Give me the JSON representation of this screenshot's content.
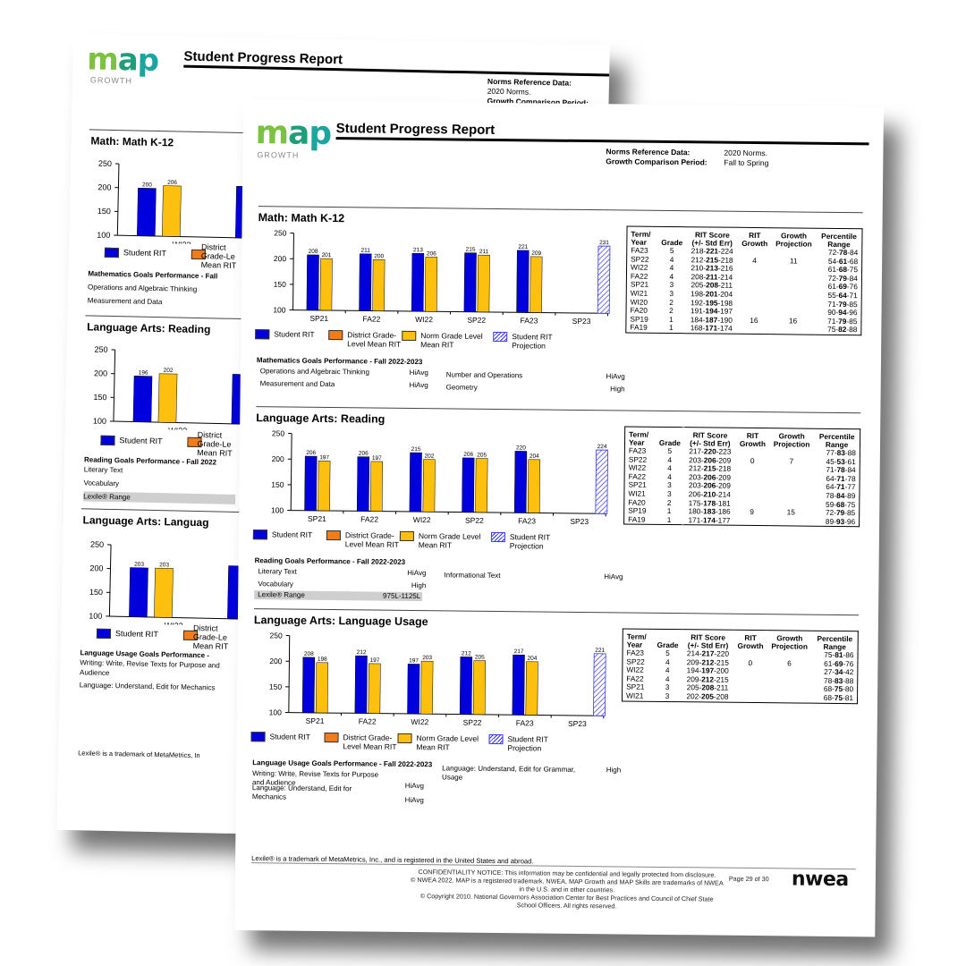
{
  "brand": {
    "logo": "map",
    "logo_sub": "GROWTH",
    "nwea": "nwea"
  },
  "report_title": "Student Progress Report",
  "norms": {
    "ref_label": "Norms Reference Data:",
    "ref_value": "2020 Norms.",
    "period_label": "Growth Comparison Period:",
    "period_value": "Fall to Spring"
  },
  "legend": {
    "student": "Student RIT",
    "district": "District Grade-Level Mean RIT",
    "norm": "Norm Grade Level Mean RIT",
    "projection": "Student RIT Projection"
  },
  "table_headers": [
    "Term/ Year",
    "Grade",
    "RIT Score (+/- Std Err)",
    "RIT Growth",
    "Growth Projection",
    "Percentile Range"
  ],
  "colors": {
    "student": "#0000dd",
    "district": "#f07d1a",
    "norm": "#fdc00f",
    "projection": "#3333ff"
  },
  "sections": [
    {
      "title": "Math: Math K-12",
      "chart_data": {
        "type": "bar",
        "categories": [
          "SP21",
          "FA22",
          "WI22",
          "SP22",
          "FA23",
          "SP23"
        ],
        "ylim": [
          100,
          250
        ],
        "yticks": [
          100,
          150,
          200,
          250
        ],
        "series": [
          {
            "name": "Student RIT",
            "values": [
              208,
              211,
              213,
              215,
              221,
              null
            ]
          },
          {
            "name": "Norm Grade Level Mean RIT",
            "values": [
              201,
              200,
              206,
              211,
              209,
              null
            ]
          },
          {
            "name": "Student RIT Projection",
            "values": [
              null,
              null,
              null,
              null,
              null,
              231
            ]
          }
        ]
      },
      "goals_head": "Mathematics Goals Performance - Fall 2022-2023",
      "goals": [
        {
          "name": "Operations and Algebraic Thinking",
          "value": "HiAvg"
        },
        {
          "name": "Number and Operations",
          "value": "HiAvg"
        },
        {
          "name": "Measurement and Data",
          "value": "HiAvg"
        },
        {
          "name": "Geometry",
          "value": "High"
        }
      ],
      "rows": [
        [
          "FA23",
          "5",
          "218-",
          "221",
          "-224",
          "",
          "",
          "72-",
          "78",
          "-84"
        ],
        [
          "SP22",
          "4",
          "212-",
          "215",
          "-218",
          "4",
          "11",
          "54-",
          "61",
          "-68"
        ],
        [
          "WI22",
          "4",
          "210-",
          "213",
          "-216",
          "",
          "",
          "61-",
          "68",
          "-75"
        ],
        [
          "FA22",
          "4",
          "208-",
          "211",
          "-214",
          "",
          "",
          "72-",
          "79",
          "-84"
        ],
        [
          "SP21",
          "3",
          "205-",
          "208",
          "-211",
          "",
          "",
          "61-",
          "69",
          "-76"
        ],
        [
          "WI21",
          "3",
          "198-",
          "201",
          "-204",
          "",
          "",
          "55-",
          "64",
          "-71"
        ],
        [
          "WI20",
          "2",
          "192-",
          "195",
          "-198",
          "",
          "",
          "71-",
          "79",
          "-85"
        ],
        [
          "FA20",
          "2",
          "191-",
          "194",
          "-197",
          "",
          "",
          "90-",
          "94",
          "-96"
        ],
        [
          "SP19",
          "1",
          "184-",
          "187",
          "-190",
          "16",
          "16",
          "71-",
          "79",
          "-85"
        ],
        [
          "FA19",
          "1",
          "168-",
          "171",
          "-174",
          "",
          "",
          "75-",
          "82",
          "-88"
        ]
      ]
    },
    {
      "title": "Language Arts: Reading",
      "chart_data": {
        "type": "bar",
        "categories": [
          "SP21",
          "FA22",
          "WI22",
          "SP22",
          "FA23",
          "SP23"
        ],
        "ylim": [
          100,
          250
        ],
        "yticks": [
          100,
          150,
          200,
          250
        ],
        "series": [
          {
            "name": "Student RIT",
            "values": [
              206,
              206,
              215,
              206,
              220,
              null
            ]
          },
          {
            "name": "Norm Grade Level Mean RIT",
            "values": [
              197,
              197,
              202,
              205,
              204,
              null
            ]
          },
          {
            "name": "Student RIT Projection",
            "values": [
              null,
              null,
              null,
              null,
              null,
              224
            ]
          }
        ]
      },
      "goals_head": "Reading Goals Performance - Fall 2022-2023",
      "goals": [
        {
          "name": "Literary Text",
          "value": "HiAvg"
        },
        {
          "name": "Informational Text",
          "value": "HiAvg"
        },
        {
          "name": "Vocabulary",
          "value": "High"
        }
      ],
      "lexile": {
        "name": "Lexile® Range",
        "value": "975L-1125L"
      },
      "rows": [
        [
          "FA23",
          "5",
          "217-",
          "220",
          "-223",
          "",
          "",
          "77-",
          "83",
          "-88"
        ],
        [
          "SP22",
          "4",
          "203-",
          "206",
          "-209",
          "0",
          "7",
          "45-",
          "53",
          "-61"
        ],
        [
          "WI22",
          "4",
          "212-",
          "215",
          "-218",
          "",
          "",
          "71-",
          "78",
          "-84"
        ],
        [
          "FA22",
          "4",
          "203-",
          "206",
          "-209",
          "",
          "",
          "64-",
          "71",
          "-78"
        ],
        [
          "SP21",
          "3",
          "203-",
          "206",
          "-209",
          "",
          "",
          "64-",
          "71",
          "-77"
        ],
        [
          "WI21",
          "3",
          "206-",
          "210",
          "-214",
          "",
          "",
          "78-",
          "84",
          "-89"
        ],
        [
          "FA20",
          "2",
          "175-",
          "178",
          "-181",
          "",
          "",
          "59-",
          "68",
          "-75"
        ],
        [
          "SP19",
          "1",
          "180-",
          "183",
          "-186",
          "9",
          "15",
          "72-",
          "79",
          "-85"
        ],
        [
          "FA19",
          "1",
          "171-",
          "174",
          "-177",
          "",
          "",
          "89-",
          "93",
          "-96"
        ]
      ]
    },
    {
      "title": "Language Arts: Language Usage",
      "chart_data": {
        "type": "bar",
        "categories": [
          "SP21",
          "FA22",
          "WI22",
          "SP22",
          "FA23",
          "SP23"
        ],
        "ylim": [
          100,
          250
        ],
        "yticks": [
          100,
          150,
          200,
          250
        ],
        "series": [
          {
            "name": "Student RIT",
            "values": [
              208,
              212,
              197,
              212,
              217,
              null
            ]
          },
          {
            "name": "Norm Grade Level Mean RIT",
            "values": [
              198,
              197,
              203,
              205,
              204,
              null
            ]
          },
          {
            "name": "Student RIT Projection",
            "values": [
              null,
              null,
              null,
              null,
              null,
              221
            ]
          }
        ]
      },
      "goals_head": "Language Usage Goals Performance - Fall 2022-2023",
      "goals": [
        {
          "name": "Writing: Write, Revise Texts for Purpose and Audience",
          "value": "HiAvg"
        },
        {
          "name": "Language: Understand, Edit for Grammar, Usage",
          "value": "High"
        },
        {
          "name": "Language: Understand, Edit for Mechanics",
          "value": "HiAvg"
        }
      ],
      "rows": [
        [
          "FA23",
          "5",
          "214-",
          "217",
          "-220",
          "",
          "",
          "75-",
          "81",
          "-86"
        ],
        [
          "SP22",
          "4",
          "209-",
          "212",
          "-215",
          "0",
          "6",
          "61-",
          "69",
          "-76"
        ],
        [
          "WI22",
          "4",
          "194-",
          "197",
          "-200",
          "",
          "",
          "27-",
          "34",
          "-42"
        ],
        [
          "FA22",
          "4",
          "209-",
          "212",
          "-215",
          "",
          "",
          "78-",
          "83",
          "-88"
        ],
        [
          "SP21",
          "3",
          "205-",
          "208",
          "-211",
          "",
          "",
          "68-",
          "75",
          "-80"
        ],
        [
          "WI21",
          "3",
          "202-",
          "205",
          "-208",
          "",
          "",
          "68-",
          "75",
          "-81"
        ]
      ]
    }
  ],
  "back_page": {
    "math_title": "Math: Math K-12",
    "math_cat": "WI22",
    "math_values": [
      200,
      206
    ],
    "math_goals_head": "Mathematics Goals Performance - Fall",
    "math_goals": [
      "Operations and Algebraic Thinking",
      "Measurement and Data"
    ],
    "read_title": "Language Arts: Reading",
    "read_cat": "WI22",
    "read_values": [
      196,
      202
    ],
    "read_goals_head": "Reading Goals Performance - Fall 2022",
    "read_goals": [
      "Literary Text",
      "Vocabulary",
      "Lexile® Range"
    ],
    "lang_title": "Language Arts: Languag",
    "lang_cat": "WI22",
    "lang_values": [
      203,
      203
    ],
    "lang_goals_head": "Language Usage Goals Performance -",
    "lang_goals": [
      "Writing: Write, Revise Texts for Purpose and Audience",
      "Language: Understand, Edit for Mechanics"
    ],
    "district_short": "District Grade-Le Mean RIT",
    "lexile_note": "Lexile® is a trademark of MetaMetrics, In"
  },
  "footer": {
    "lexile_note": "Lexile® is a trademark of MetaMetrics, Inc., and is registered in the United States and abroad.",
    "confidentiality": "CONFIDENTIALITY NOTICE: This information may be confidential and legally protected from disclosure.",
    "trademark": "© NWEA 2022. MAP is a registered trademark. NWEA, MAP Growth and MAP Skills are trademarks of NWEA in the U.S. and in other countries.",
    "copyright": "© Copyright 2010. National Governors Association Center for Best Practices and Council of Chief State School Officers. All rights reserved.",
    "page": "Page 29 of 30"
  }
}
